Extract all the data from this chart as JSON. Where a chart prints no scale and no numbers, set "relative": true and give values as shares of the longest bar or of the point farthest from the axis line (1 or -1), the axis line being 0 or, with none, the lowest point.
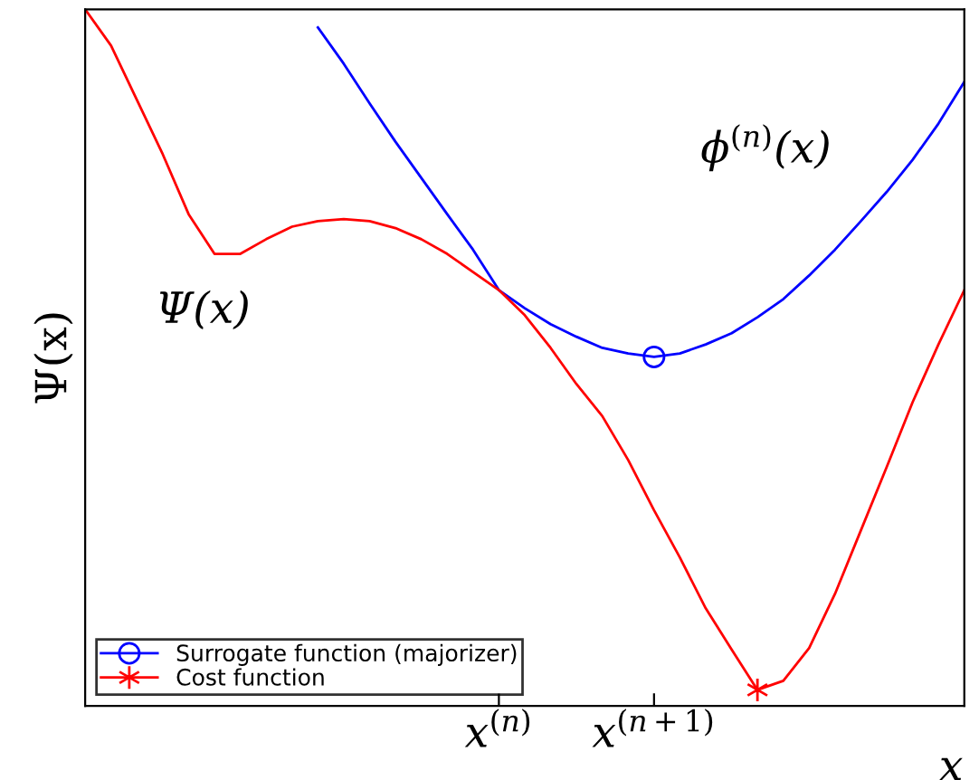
{
  "chart_data": {
    "type": "line",
    "relative": true,
    "xlabel": "x",
    "ylabel": "Ψ(x)",
    "categories": [
      null,
      null,
      null,
      null,
      null,
      null,
      null,
      null,
      null,
      null,
      null,
      null,
      null,
      null,
      null,
      null,
      "x$^{(n)}$",
      null,
      null,
      null,
      null,
      null,
      "x$^{(n+1)}$",
      null,
      null,
      null,
      null,
      null,
      null,
      null,
      null,
      null,
      null,
      null,
      null
    ],
    "tick_labels": "x",
    "grid": false,
    "legend": "bottom left",
    "annotations": [
      "ϕ$^{(n)}$(x)",
      "Ψ(x)"
    ],
    "series": [
      {
        "name": "Surrogate function (majorizer)",
        "color": "#0000ff",
        "values": [
          null,
          null,
          null,
          null,
          null,
          null,
          null,
          null,
          null,
          0.974,
          0.922,
          0.865,
          0.81,
          0.758,
          0.706,
          0.655,
          0.597,
          0.571,
          0.548,
          0.53,
          0.514,
          0.506,
          0.501,
          0.506,
          0.519,
          0.535,
          0.558,
          0.584,
          0.618,
          0.655,
          0.696,
          0.738,
          0.784,
          0.836,
          0.896
        ]
      },
      {
        "name": "Cost function",
        "color": "#ff0000",
        "values": [
          1.0,
          0.948,
          0.87,
          0.792,
          0.706,
          0.649,
          0.649,
          0.67,
          0.688,
          0.696,
          0.699,
          0.696,
          0.686,
          0.67,
          0.649,
          0.623,
          0.597,
          0.561,
          0.514,
          0.462,
          0.416,
          0.353,
          0.281,
          0.213,
          0.14,
          0.081,
          0.023,
          0.036,
          0.083,
          0.161,
          0.252,
          0.343,
          0.436,
          0.519,
          0.597
        ]
      },
      {
        "type": "scatter",
        "color": "#0000ff",
        "marker": "circle",
        "values": [
          null,
          null,
          null,
          null,
          null,
          null,
          null,
          null,
          null,
          null,
          null,
          null,
          null,
          null,
          null,
          null,
          null,
          null,
          null,
          null,
          null,
          null,
          0.501,
          null,
          null,
          null,
          null,
          null,
          null,
          null,
          null,
          null,
          null,
          null,
          null
        ]
      },
      {
        "type": "scatter",
        "color": "#ff0000",
        "marker": "cross",
        "values": [
          null,
          null,
          null,
          null,
          null,
          null,
          null,
          null,
          null,
          null,
          null,
          null,
          null,
          null,
          null,
          null,
          null,
          null,
          null,
          null,
          null,
          null,
          null,
          null,
          null,
          null,
          0.023,
          null,
          null,
          null,
          null,
          null,
          null,
          null,
          null
        ]
      }
    ]
  }
}
